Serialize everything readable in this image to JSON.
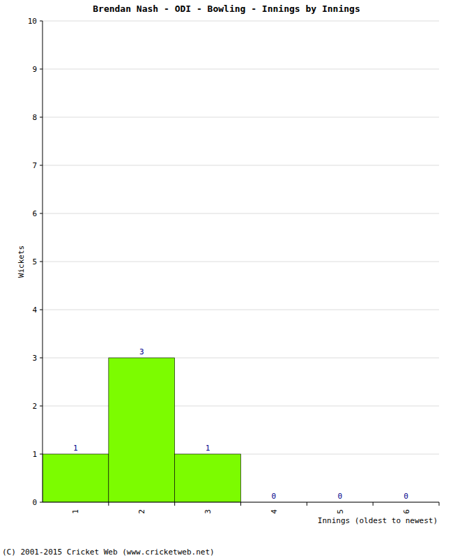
{
  "chart_data": {
    "type": "bar",
    "title": "Brendan Nash - ODI - Bowling - Innings by Innings",
    "x_label": "Innings (oldest to newest)",
    "y_label": "Wickets",
    "categories": [
      "1",
      "2",
      "3",
      "4",
      "5",
      "6"
    ],
    "values": [
      1,
      3,
      1,
      0,
      0,
      0
    ],
    "color": "#7cfc00",
    "ylim": [
      0,
      10
    ],
    "yticks": [
      0,
      1,
      2,
      3,
      4,
      5,
      6,
      7,
      8,
      9,
      10
    ],
    "grid": true,
    "data_labels": true,
    "annotations": [
      "(C) 2001-2015 Cricket Web (www.cricketweb.net)"
    ]
  }
}
